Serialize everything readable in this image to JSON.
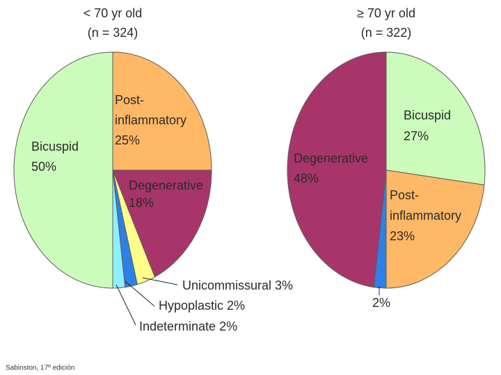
{
  "chart_data": [
    {
      "type": "pie",
      "title": "< 70 yr old",
      "subtitle": "(n = 324)",
      "categories": [
        "Post-inflammatory",
        "Degenerative",
        "Unicommissural",
        "Hypoplastic",
        "Indeterminate",
        "Bicuspid"
      ],
      "values": [
        25,
        18,
        3,
        2,
        2,
        50
      ],
      "value_labels": [
        "25%",
        "18%",
        "3%",
        "2%",
        "2%",
        "50%"
      ],
      "colors": [
        "#ffb865",
        "#a8356a",
        "#ffff8a",
        "#2f80e6",
        "#8ef0ff",
        "#ccfcbc"
      ]
    },
    {
      "type": "pie",
      "title": "≥ 70 yr old",
      "subtitle": "(n = 322)",
      "categories": [
        "Bicuspid",
        "Post-inflammatory",
        null,
        "Degenerative"
      ],
      "values": [
        27,
        23,
        2,
        48
      ],
      "value_labels": [
        "27%",
        "23%",
        "2%",
        "48%"
      ],
      "colors": [
        "#ccfcbc",
        "#ffb865",
        "#2f80e6",
        "#a8356a"
      ]
    }
  ],
  "caption": "Sabinston, 17º edición"
}
